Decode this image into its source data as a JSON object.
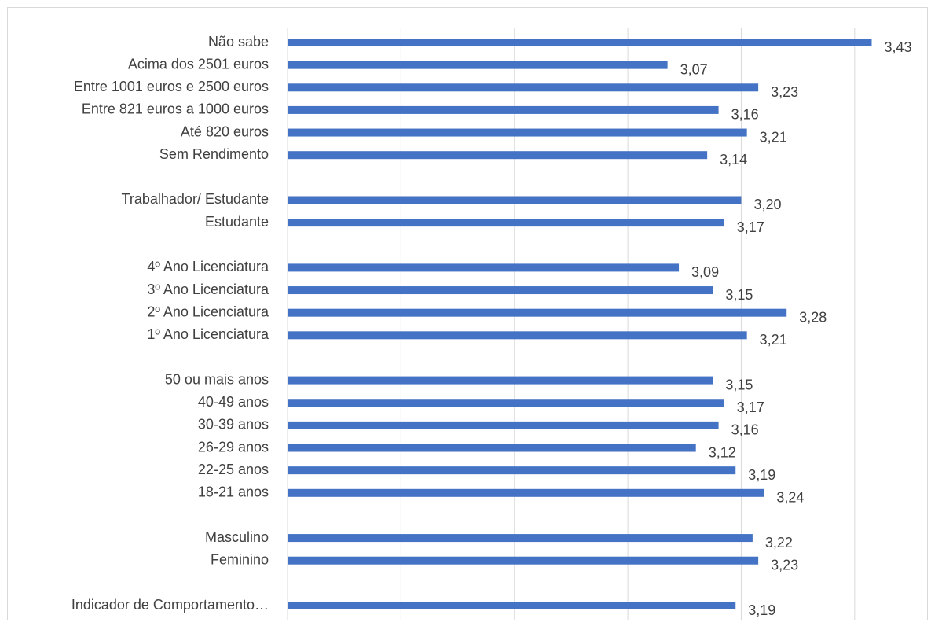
{
  "chart_data": {
    "type": "bar",
    "orientation": "horizontal",
    "xlim": [
      2.4,
      3.5
    ],
    "grid": true,
    "legend": "none",
    "bar_color": "#4472C4",
    "gridline_color": "#d9d9d9",
    "label_color": "#404040",
    "categories": [
      "Não sabe",
      "Acima dos 2501 euros",
      "Entre 1001 euros e 2500 euros",
      "Entre 821 euros a 1000 euros",
      "Até 820 euros",
      "Sem Rendimento",
      "",
      "Trabalhador/ Estudante",
      "Estudante",
      "",
      "4º Ano Licenciatura",
      "3º Ano Licenciatura",
      "2º Ano Licenciatura",
      "1º Ano Licenciatura",
      "",
      "50 ou mais anos",
      "40-49 anos",
      "30-39 anos",
      "26-29 anos",
      "22-25 anos",
      "18-21 anos",
      "",
      "Masculino",
      "Feminino",
      "",
      "Indicador de Comportamento…"
    ],
    "values": [
      3.43,
      3.07,
      3.23,
      3.16,
      3.21,
      3.14,
      null,
      3.2,
      3.17,
      null,
      3.09,
      3.15,
      3.28,
      3.21,
      null,
      3.15,
      3.17,
      3.16,
      3.12,
      3.19,
      3.24,
      null,
      3.22,
      3.23,
      null,
      3.19
    ],
    "data_labels": [
      "3,43",
      "3,07",
      "3,23",
      "3,16",
      "3,21",
      "3,14",
      "",
      "3,20",
      "3,17",
      "",
      "3,09",
      "3,15",
      "3,28",
      "3,21",
      "",
      "3,15",
      "3,17",
      "3,16",
      "3,12",
      "3,19",
      "3,24",
      "",
      "3,22",
      "3,23",
      "",
      "3,19"
    ]
  }
}
